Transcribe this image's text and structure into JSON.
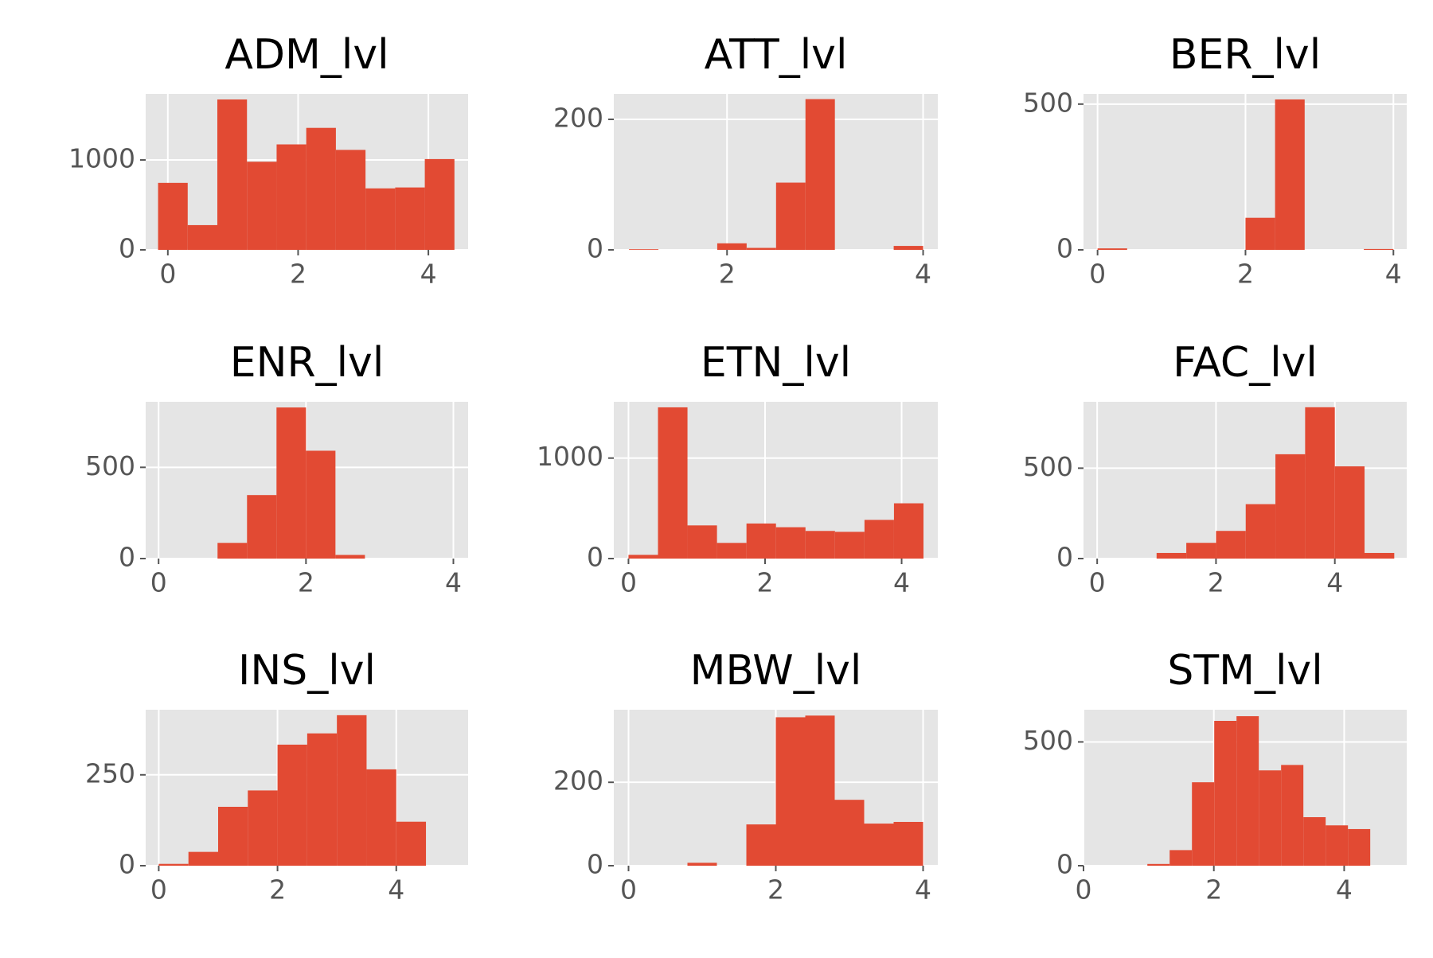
{
  "chart_data": [
    {
      "type": "histogram",
      "title": "ADM_lvl",
      "color": "#e24a33",
      "grid": true,
      "bins": [
        -0.15,
        0.305,
        0.76,
        1.215,
        1.67,
        2.125,
        2.58,
        3.035,
        3.49,
        3.945,
        4.4
      ],
      "values": [
        745,
        275,
        1673,
        980,
        1173,
        1357,
        1112,
        684,
        694,
        1010
      ],
      "xlim": [
        -0.34,
        4.61
      ],
      "ylim": [
        0,
        1735
      ],
      "xticks": [
        0,
        2,
        4
      ],
      "yticks": [
        0,
        1000
      ]
    },
    {
      "type": "histogram",
      "title": "ATT_lvl",
      "color": "#e24a33",
      "grid": true,
      "bins": [
        1.0,
        1.3,
        1.6,
        1.9,
        2.2,
        2.5,
        2.8,
        3.1,
        3.4,
        3.7,
        4.0
      ],
      "values": [
        1,
        0,
        0,
        10,
        3,
        103,
        231,
        0,
        0,
        6
      ],
      "xlim": [
        0.845,
        4.15
      ],
      "ylim": [
        0,
        239
      ],
      "xticks": [
        2,
        4
      ],
      "yticks": [
        0,
        200
      ]
    },
    {
      "type": "histogram",
      "title": "BER_lvl",
      "color": "#e24a33",
      "grid": true,
      "bins": [
        0,
        0.4,
        0.8,
        1.2,
        1.6,
        2.0,
        2.4,
        2.8,
        3.2,
        3.6,
        4.0
      ],
      "values": [
        5,
        0,
        0,
        0,
        0,
        110,
        516,
        0,
        0,
        3
      ],
      "xlim": [
        -0.19,
        4.18
      ],
      "ylim": [
        0,
        535
      ],
      "xticks": [
        0,
        2,
        4
      ],
      "yticks": [
        0,
        500
      ]
    },
    {
      "type": "histogram",
      "title": "ENR_lvl",
      "color": "#e24a33",
      "grid": true,
      "bins": [
        0,
        0.4,
        0.8,
        1.2,
        1.6,
        2.0,
        2.4,
        2.8,
        3.2,
        3.6,
        4.0
      ],
      "values": [
        0,
        0,
        86,
        348,
        828,
        591,
        20,
        0,
        0,
        0
      ],
      "xlim": [
        -0.175,
        4.2
      ],
      "ylim": [
        0,
        859
      ],
      "xticks": [
        0,
        2,
        4
      ],
      "yticks": [
        0,
        500
      ]
    },
    {
      "type": "histogram",
      "title": "ETN_lvl",
      "color": "#e24a33",
      "grid": true,
      "bins": [
        0,
        0.432,
        0.864,
        1.296,
        1.728,
        2.16,
        2.592,
        3.024,
        3.456,
        3.888,
        4.32
      ],
      "values": [
        37,
        1505,
        330,
        156,
        349,
        312,
        275,
        266,
        385,
        550
      ],
      "xlim": [
        -0.215,
        4.53
      ],
      "ylim": [
        0,
        1560
      ],
      "xticks": [
        0,
        2,
        4
      ],
      "yticks": [
        0,
        1000
      ]
    },
    {
      "type": "histogram",
      "title": "FAC_lvl",
      "color": "#e24a33",
      "grid": true,
      "bins": [
        0,
        0.5,
        1.0,
        1.5,
        2.0,
        2.5,
        3.0,
        3.5,
        4.0,
        4.5,
        5.0
      ],
      "values": [
        0,
        0,
        31,
        87,
        153,
        301,
        577,
        837,
        510,
        31
      ],
      "xlim": [
        -0.23,
        5.21
      ],
      "ylim": [
        0,
        867
      ],
      "xticks": [
        0,
        2,
        4
      ],
      "yticks": [
        0,
        500
      ]
    },
    {
      "type": "histogram",
      "title": "INS_lvl",
      "color": "#e24a33",
      "grid": true,
      "bins": [
        0,
        0.5,
        1.0,
        1.5,
        2.0,
        2.5,
        3.0,
        3.5,
        4.0,
        4.5,
        5.0
      ],
      "values": [
        5,
        38,
        162,
        207,
        333,
        364,
        414,
        265,
        121,
        0
      ],
      "xlim": [
        -0.22,
        5.21
      ],
      "ylim": [
        0,
        429
      ],
      "xticks": [
        0,
        2,
        4
      ],
      "yticks": [
        0,
        250
      ]
    },
    {
      "type": "histogram",
      "title": "MBW_lvl",
      "color": "#e24a33",
      "grid": true,
      "bins": [
        0,
        0.4,
        0.8,
        1.2,
        1.6,
        2.0,
        2.4,
        2.8,
        3.2,
        3.6,
        4.0
      ],
      "values": [
        0,
        0,
        7,
        0,
        99,
        356,
        360,
        158,
        101,
        105
      ],
      "xlim": [
        -0.2,
        4.2
      ],
      "ylim": [
        0,
        374
      ],
      "xticks": [
        0,
        2,
        4
      ],
      "yticks": [
        0,
        200
      ]
    },
    {
      "type": "histogram",
      "title": "STM_lvl",
      "color": "#e24a33",
      "grid": true,
      "bins": [
        0.98,
        1.322,
        1.664,
        2.006,
        2.348,
        2.69,
        3.032,
        3.374,
        3.716,
        4.058,
        4.4
      ],
      "values": [
        7,
        63,
        337,
        585,
        604,
        385,
        407,
        196,
        163,
        148
      ],
      "xlim": [
        0,
        4.96
      ],
      "ylim": [
        0,
        630
      ],
      "xticks": [
        0,
        2,
        4
      ],
      "yticks": [
        0,
        500
      ]
    }
  ]
}
